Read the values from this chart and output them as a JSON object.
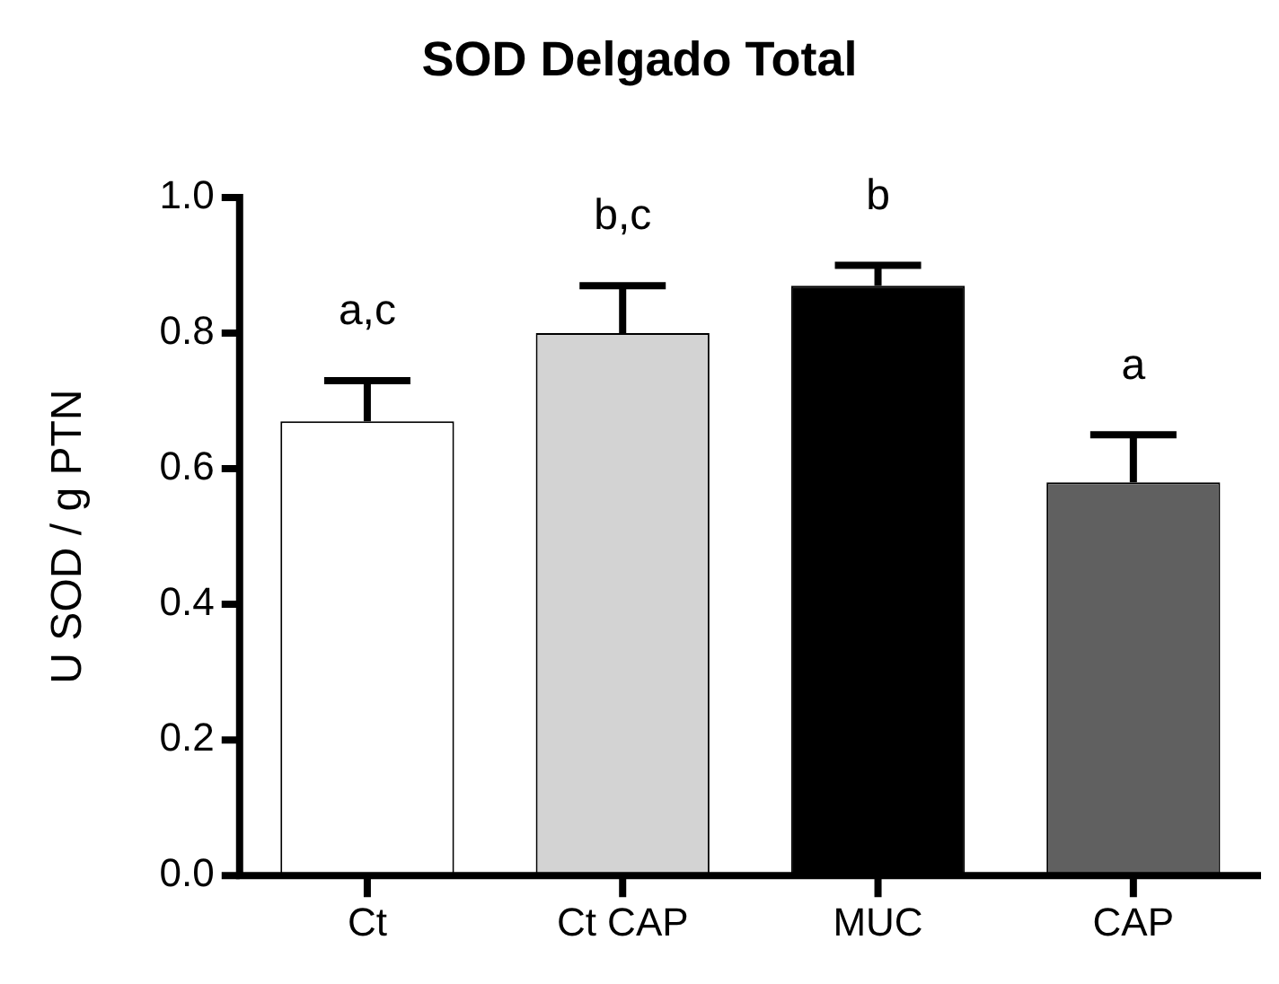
{
  "chart_data": {
    "type": "bar",
    "title": "SOD Delgado Total",
    "ylabel": "U SOD / g PTN",
    "categories": [
      "Ct",
      "Ct CAP",
      "MUC",
      "CAP"
    ],
    "values": [
      0.67,
      0.8,
      0.87,
      0.58
    ],
    "errors": [
      [
        0.67,
        0.73
      ],
      [
        0.8,
        0.87
      ],
      [
        0.87,
        0.9
      ],
      [
        0.58,
        0.65
      ]
    ],
    "colors": [
      "#ffffff",
      "#d3d3d3",
      "#000000",
      "#606060"
    ],
    "ylim": [
      0,
      1.0
    ],
    "yticks": [
      {
        "value": 0,
        "label": "0.0"
      },
      0.2,
      0.4,
      0.6,
      0.8,
      {
        "value": 1,
        "label": "1.0"
      }
    ],
    "grid": false,
    "legend": false,
    "annotations": [
      "a,c",
      "b,c",
      "b",
      "a"
    ]
  }
}
